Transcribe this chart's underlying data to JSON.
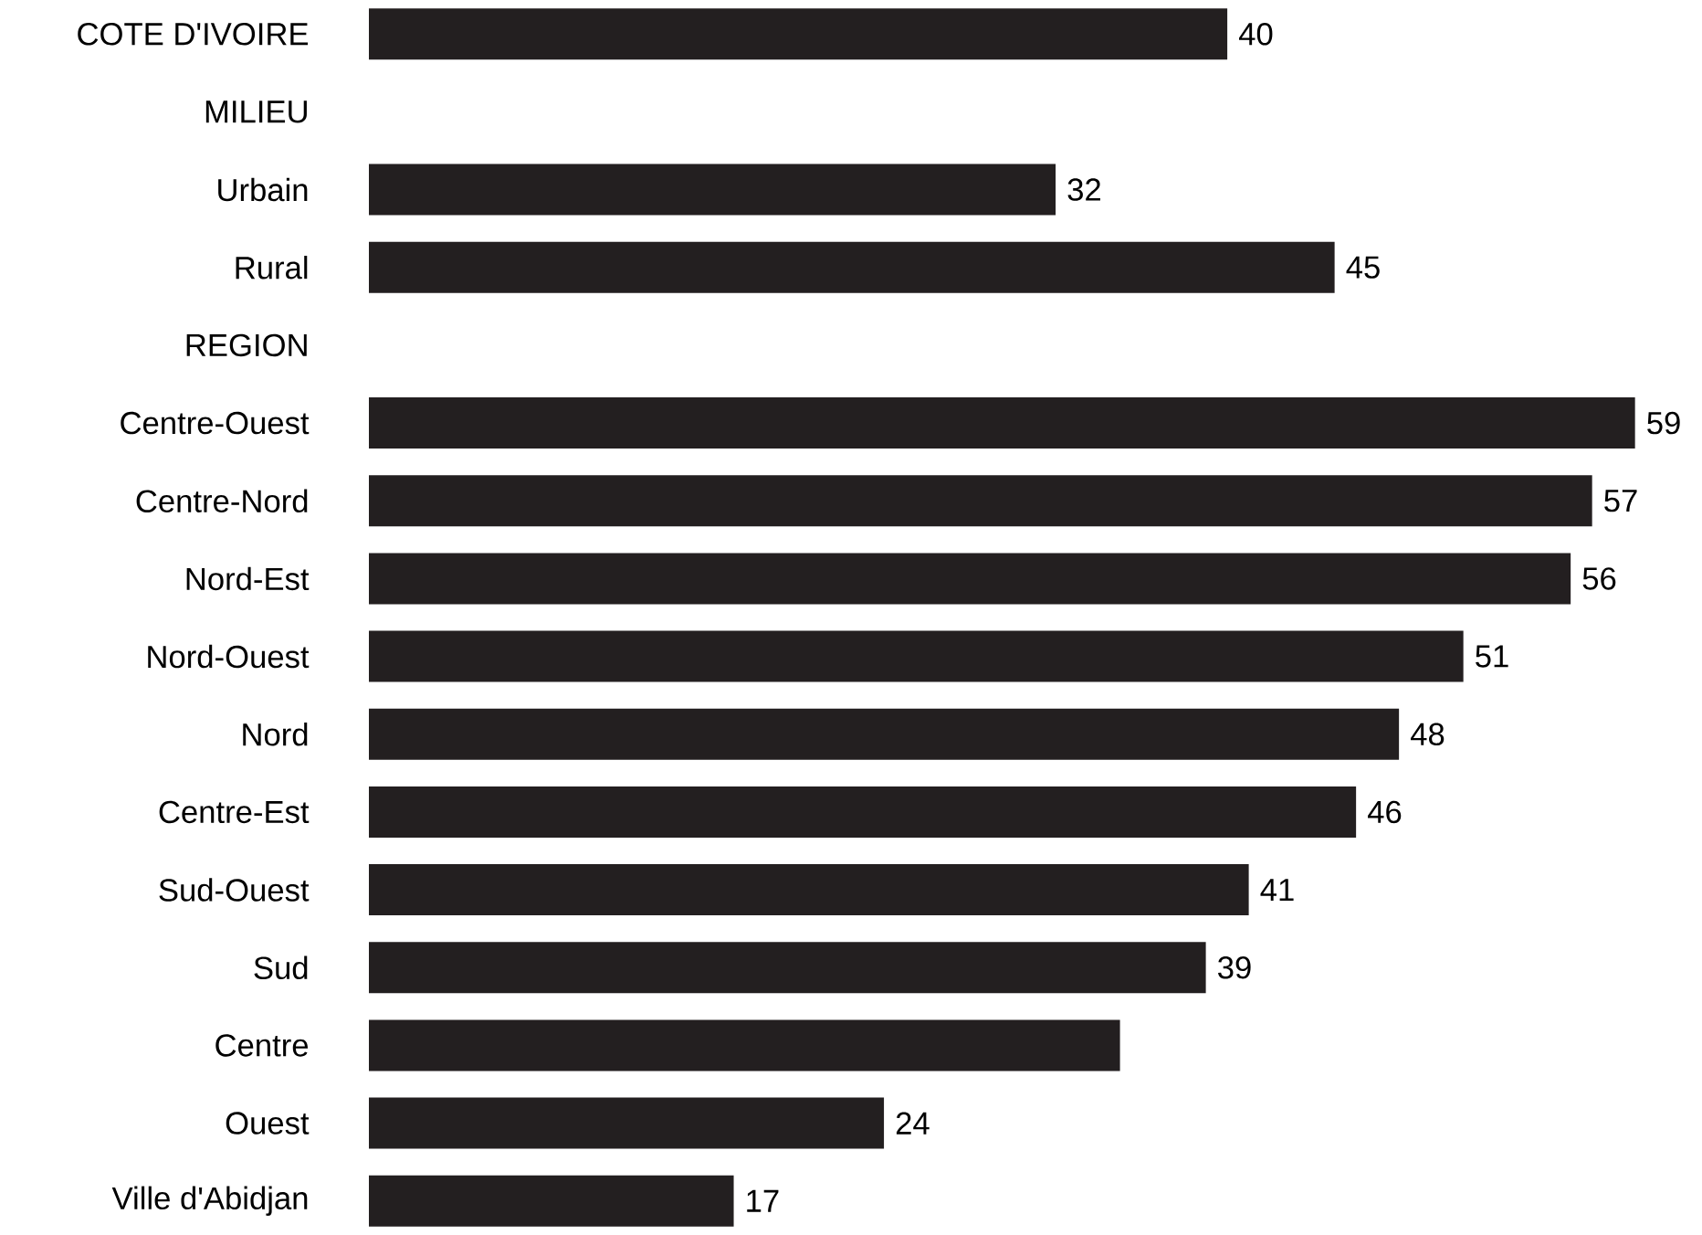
{
  "chart_data": {
    "type": "bar",
    "orientation": "horizontal",
    "categories": [
      "COTE D'IVOIRE",
      "MILIEU",
      "Urbain",
      "Rural",
      "REGION",
      "Centre-Ouest",
      "Centre-Nord",
      "Nord-Est",
      "Nord-Ouest",
      "Nord",
      "Centre-Est",
      "Sud-Ouest",
      "Sud",
      "Centre",
      "Ouest",
      "Ville d'Abidjan"
    ],
    "values": [
      40,
      null,
      32,
      45,
      null,
      59,
      57,
      56,
      51,
      48,
      46,
      41,
      39,
      35,
      24,
      17
    ],
    "value_labels": [
      "40",
      null,
      "32",
      "45",
      null,
      "59",
      "57",
      "56",
      "51",
      "48",
      "46",
      "41",
      "39",
      null,
      "24",
      "17"
    ],
    "color": "#231f20"
  }
}
